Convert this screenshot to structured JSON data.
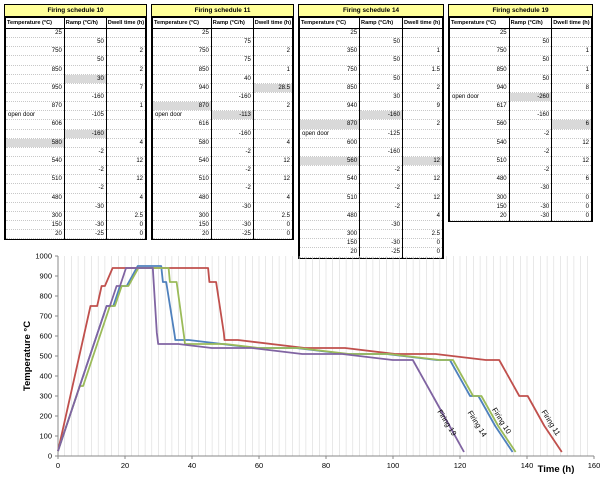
{
  "schedules": [
    {
      "title": "Firing schedule 10",
      "headers": [
        "Temperature (°C)",
        "Ramp (°C/h)",
        "Dwell time (h)"
      ],
      "rows": [
        [
          "25",
          "",
          ""
        ],
        [
          "",
          "50",
          ""
        ],
        [
          "750",
          "",
          "2"
        ],
        [
          "",
          "50",
          ""
        ],
        [
          "850",
          "",
          "2"
        ],
        [
          "",
          "30",
          ""
        ],
        [
          "950",
          "",
          "7"
        ],
        [
          "",
          "-160",
          ""
        ],
        [
          "870",
          "",
          "1"
        ],
        [
          "open door",
          "-105",
          ""
        ],
        [
          "606",
          "",
          ""
        ],
        [
          "",
          "-160",
          ""
        ],
        [
          "580",
          "",
          "4"
        ],
        [
          "",
          "-2",
          ""
        ],
        [
          "540",
          "",
          "12"
        ],
        [
          "",
          "-2",
          ""
        ],
        [
          "510",
          "",
          "12"
        ],
        [
          "",
          "-2",
          ""
        ],
        [
          "480",
          "",
          "4"
        ],
        [
          "",
          "-30",
          ""
        ],
        [
          "300",
          "",
          "2.5"
        ],
        [
          "150",
          "-30",
          "0"
        ],
        [
          "20",
          "-25",
          "0"
        ]
      ],
      "gray": [
        [
          5,
          1
        ],
        [
          11,
          1
        ],
        [
          12,
          0
        ]
      ]
    },
    {
      "title": "Firing schedule 11",
      "headers": [
        "Temperature (°C)",
        "Ramp (°C/h)",
        "Dwell time (h)"
      ],
      "rows": [
        [
          "25",
          "",
          ""
        ],
        [
          "",
          "75",
          ""
        ],
        [
          "750",
          "",
          "2"
        ],
        [
          "",
          "75",
          ""
        ],
        [
          "850",
          "",
          "1"
        ],
        [
          "",
          "40",
          ""
        ],
        [
          "940",
          "",
          "28.5"
        ],
        [
          "",
          "-160",
          ""
        ],
        [
          "870",
          "",
          "2"
        ],
        [
          "open door",
          "-113",
          ""
        ],
        [
          "616",
          "",
          ""
        ],
        [
          "",
          "-160",
          ""
        ],
        [
          "580",
          "",
          "4"
        ],
        [
          "",
          "-2",
          ""
        ],
        [
          "540",
          "",
          "12"
        ],
        [
          "",
          "-2",
          ""
        ],
        [
          "510",
          "",
          "12"
        ],
        [
          "",
          "-2",
          ""
        ],
        [
          "480",
          "",
          "4"
        ],
        [
          "",
          "-30",
          ""
        ],
        [
          "300",
          "",
          "2.5"
        ],
        [
          "150",
          "-30",
          "0"
        ],
        [
          "20",
          "-25",
          "0"
        ]
      ],
      "gray": [
        [
          6,
          2
        ],
        [
          8,
          0
        ],
        [
          9,
          1
        ]
      ]
    },
    {
      "title": "Firing schedule 14",
      "headers": [
        "Temperature (°C)",
        "Ramp (°C/h)",
        "Dwell time (h)"
      ],
      "rows": [
        [
          "25",
          "",
          ""
        ],
        [
          "",
          "50",
          ""
        ],
        [
          "350",
          "",
          "1"
        ],
        [
          "",
          "50",
          ""
        ],
        [
          "750",
          "",
          "1.5"
        ],
        [
          "",
          "50",
          ""
        ],
        [
          "850",
          "",
          "2"
        ],
        [
          "",
          "30",
          ""
        ],
        [
          "940",
          "",
          "9"
        ],
        [
          "",
          "-160",
          ""
        ],
        [
          "870",
          "",
          "2"
        ],
        [
          "open door",
          "-125",
          ""
        ],
        [
          "600",
          "",
          ""
        ],
        [
          "",
          "-160",
          ""
        ],
        [
          "560",
          "",
          "12"
        ],
        [
          "",
          "-2",
          ""
        ],
        [
          "540",
          "",
          "12"
        ],
        [
          "",
          "-2",
          ""
        ],
        [
          "510",
          "",
          "12"
        ],
        [
          "",
          "-2",
          ""
        ],
        [
          "480",
          "",
          "4"
        ],
        [
          "",
          "-30",
          ""
        ],
        [
          "300",
          "",
          "2.5"
        ],
        [
          "150",
          "-30",
          "0"
        ],
        [
          "20",
          "-25",
          "0"
        ]
      ],
      "gray": [
        [
          9,
          1
        ],
        [
          10,
          0
        ],
        [
          14,
          0
        ],
        [
          14,
          2
        ]
      ]
    },
    {
      "title": "Firing schedule 19",
      "headers": [
        "Temperature (°C)",
        "Ramp (°C/h)",
        "Dwell time (h)"
      ],
      "rows": [
        [
          "25",
          "",
          ""
        ],
        [
          "",
          "50",
          ""
        ],
        [
          "750",
          "",
          "1"
        ],
        [
          "",
          "50",
          ""
        ],
        [
          "850",
          "",
          "1"
        ],
        [
          "",
          "50",
          ""
        ],
        [
          "940",
          "",
          "8"
        ],
        [
          "open door",
          "-260",
          ""
        ],
        [
          "617",
          "",
          ""
        ],
        [
          "",
          "-160",
          ""
        ],
        [
          "560",
          "",
          "6"
        ],
        [
          "",
          "-2",
          ""
        ],
        [
          "540",
          "",
          "12"
        ],
        [
          "",
          "-2",
          ""
        ],
        [
          "510",
          "",
          "12"
        ],
        [
          "",
          "-2",
          ""
        ],
        [
          "480",
          "",
          "6"
        ],
        [
          "",
          "-30",
          ""
        ],
        [
          "300",
          "",
          "0"
        ],
        [
          "150",
          "-30",
          "0"
        ],
        [
          "20",
          "-30",
          "0"
        ]
      ],
      "gray": [
        [
          7,
          1
        ],
        [
          10,
          2
        ]
      ]
    }
  ],
  "chart_data": {
    "type": "line",
    "xlabel": "Time (h)",
    "ylabel": "Temperature °C",
    "xlim": [
      0,
      160
    ],
    "ylim": [
      0,
      1000
    ],
    "xticks": [
      0,
      20,
      40,
      60,
      80,
      100,
      120,
      140,
      160
    ],
    "yticks": [
      0,
      100,
      200,
      300,
      400,
      500,
      600,
      700,
      800,
      900,
      1000
    ],
    "grid": "vertical",
    "series": [
      {
        "name": "Firing 11",
        "color": "#c0504d",
        "points": [
          [
            0,
            25
          ],
          [
            9.7,
            750
          ],
          [
            11.7,
            750
          ],
          [
            13,
            850
          ],
          [
            14,
            850
          ],
          [
            16.3,
            940
          ],
          [
            44.8,
            940
          ],
          [
            45.2,
            870
          ],
          [
            47.2,
            870
          ],
          [
            49.5,
            616
          ],
          [
            49.7,
            580
          ],
          [
            53.7,
            580
          ],
          [
            73.7,
            540
          ],
          [
            85.7,
            540
          ],
          [
            100.7,
            510
          ],
          [
            112.7,
            510
          ],
          [
            127.7,
            480
          ],
          [
            131.7,
            480
          ],
          [
            137.7,
            300
          ],
          [
            140.2,
            300
          ],
          [
            145.2,
            150
          ],
          [
            150.4,
            20
          ]
        ]
      },
      {
        "name": "Firing 10",
        "color": "#4f81bd",
        "points": [
          [
            0,
            25
          ],
          [
            14.5,
            750
          ],
          [
            16.5,
            750
          ],
          [
            18.5,
            850
          ],
          [
            20.5,
            850
          ],
          [
            23.8,
            950
          ],
          [
            30.8,
            950
          ],
          [
            31.3,
            870
          ],
          [
            32.3,
            870
          ],
          [
            34.8,
            606
          ],
          [
            35,
            580
          ],
          [
            39,
            580
          ],
          [
            59,
            540
          ],
          [
            71,
            540
          ],
          [
            86,
            510
          ],
          [
            98,
            510
          ],
          [
            113,
            480
          ],
          [
            117,
            480
          ],
          [
            123,
            300
          ],
          [
            125.5,
            300
          ],
          [
            130.5,
            150
          ],
          [
            135.7,
            20
          ]
        ]
      },
      {
        "name": "Firing 14",
        "color": "#9bbb59",
        "points": [
          [
            0,
            25
          ],
          [
            6.5,
            350
          ],
          [
            7.5,
            350
          ],
          [
            15.5,
            750
          ],
          [
            17,
            750
          ],
          [
            19,
            850
          ],
          [
            21,
            850
          ],
          [
            24,
            940
          ],
          [
            33,
            940
          ],
          [
            33.4,
            870
          ],
          [
            35.4,
            870
          ],
          [
            37.6,
            600
          ],
          [
            37.9,
            560
          ],
          [
            49.9,
            560
          ],
          [
            59.9,
            540
          ],
          [
            71.9,
            540
          ],
          [
            86.9,
            510
          ],
          [
            98.9,
            510
          ],
          [
            113.9,
            480
          ],
          [
            117.9,
            480
          ],
          [
            123.9,
            300
          ],
          [
            126.4,
            300
          ],
          [
            131.4,
            150
          ],
          [
            136.6,
            20
          ]
        ]
      },
      {
        "name": "Firing 19",
        "color": "#8064a2",
        "points": [
          [
            0,
            25
          ],
          [
            14.5,
            750
          ],
          [
            15.5,
            750
          ],
          [
            17.5,
            850
          ],
          [
            18.5,
            850
          ],
          [
            20.3,
            940
          ],
          [
            28.3,
            940
          ],
          [
            29.5,
            617
          ],
          [
            29.9,
            560
          ],
          [
            35.9,
            560
          ],
          [
            45.9,
            540
          ],
          [
            57.9,
            540
          ],
          [
            72.9,
            510
          ],
          [
            84.9,
            510
          ],
          [
            99.9,
            480
          ],
          [
            105.9,
            480
          ],
          [
            111.9,
            300
          ],
          [
            116.9,
            150
          ],
          [
            121.2,
            20
          ]
        ]
      }
    ]
  }
}
